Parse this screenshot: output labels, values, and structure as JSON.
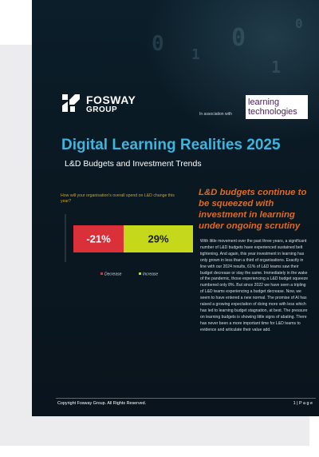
{
  "brand": {
    "logo_line1": "FOSWAY",
    "logo_line2": "GROUP",
    "association_text": "In association with",
    "partner_line1": "learning",
    "partner_line2": "technologies"
  },
  "report": {
    "title": "Digital Learning Realities 2025",
    "subtitle": "L&D Budgets and Investment Trends"
  },
  "chart_data": {
    "type": "bar",
    "orientation": "horizontal-stacked",
    "title": "How will your organisation's overall spend on L&D change this year?",
    "series": [
      {
        "name": "Decrease",
        "value": 21,
        "label": "-21%",
        "color": "#d9303a"
      },
      {
        "name": "Increase",
        "value": 29,
        "label": "29%",
        "color": "#c6d81a"
      }
    ],
    "legend": "bottom",
    "grid": false
  },
  "article": {
    "headline": "L&D budgets continue to be squeezed with investment in learning under ongoing scrutiny",
    "body": "With little movement over the past three years, a significant number of L&D budgets have experienced sustained belt tightening. And again, this year investment in learning has only grown in less than a third of organisations. Exactly in line with our 2024 results, 61% of L&D teams saw their budget decrease or stay the same. Immediately in the wake of the pandemic, those experiencing a L&D budget squeeze numbered only 8%. But since 2022 we have seen a tripling of L&D teams experiencing a budget decrease. Now, we seem to have entered a new normal. The promise of AI has raised a growing expectation of doing more with less which has led to learning budget stagnation, at best. The pressure on learning budgets is showing little signs of abating. There has never been a more important time for L&D teams to evidence and articulate their value add."
  },
  "footer": {
    "copyright": "Copyright Fosway Group. All Rights Reserved.",
    "page_label": "1 | P a g e"
  },
  "colors": {
    "page_bg": "#0a1822",
    "title": "#3bb6e0",
    "headline": "#e06a1f",
    "question": "#d4a21a"
  }
}
